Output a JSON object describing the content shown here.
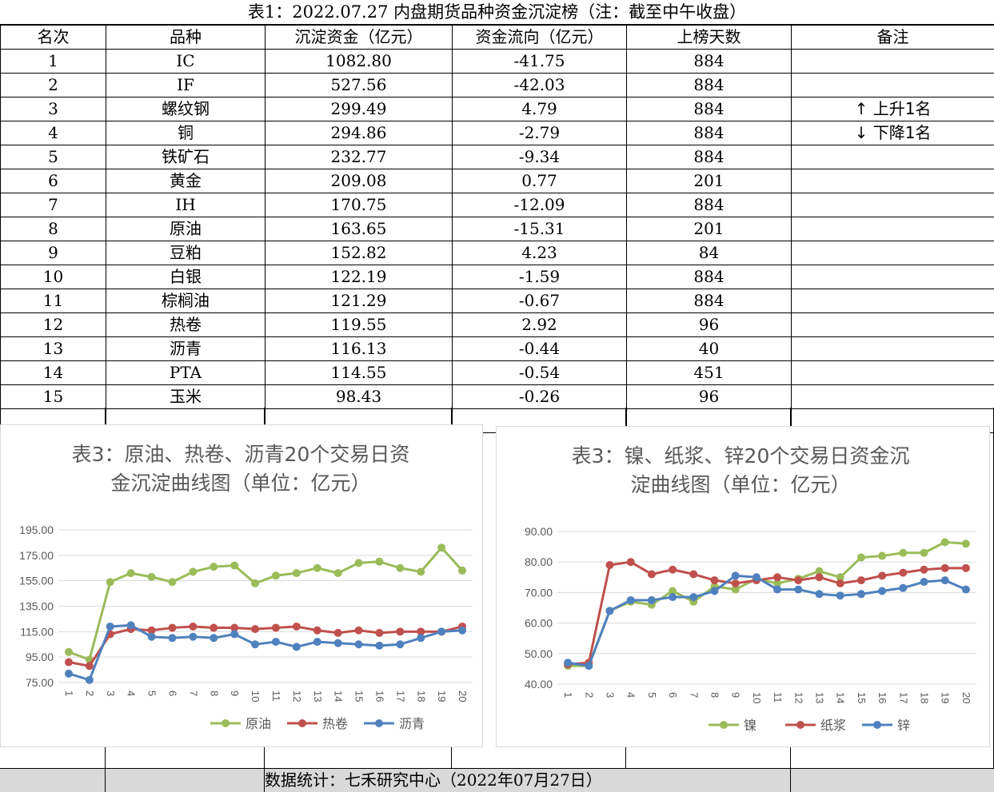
{
  "table": {
    "title": "表1：2022.07.27 内盘期货品种资金沉淀榜（注：截至中午收盘）",
    "headers": [
      "名次",
      "品种",
      "沉淀资金（亿元）",
      "资金流向（亿元）",
      "上榜天数",
      "备注"
    ],
    "rows": [
      {
        "rank": "1",
        "name": "IC",
        "amount": "1082.80",
        "flow": "-41.75",
        "days": "884",
        "note": ""
      },
      {
        "rank": "2",
        "name": "IF",
        "amount": "527.56",
        "flow": "-42.03",
        "days": "884",
        "note": ""
      },
      {
        "rank": "3",
        "name": "螺纹钢",
        "amount": "299.49",
        "flow": "4.79",
        "days": "884",
        "note": "↑ 上升1名"
      },
      {
        "rank": "4",
        "name": "铜",
        "amount": "294.86",
        "flow": "-2.79",
        "days": "884",
        "note": "↓ 下降1名"
      },
      {
        "rank": "5",
        "name": "铁矿石",
        "amount": "232.77",
        "flow": "-9.34",
        "days": "884",
        "note": ""
      },
      {
        "rank": "6",
        "name": "黄金",
        "amount": "209.08",
        "flow": "0.77",
        "days": "201",
        "note": ""
      },
      {
        "rank": "7",
        "name": "IH",
        "amount": "170.75",
        "flow": "-12.09",
        "days": "884",
        "note": ""
      },
      {
        "rank": "8",
        "name": "原油",
        "amount": "163.65",
        "flow": "-15.31",
        "days": "201",
        "note": ""
      },
      {
        "rank": "9",
        "name": "豆粕",
        "amount": "152.82",
        "flow": "4.23",
        "days": "84",
        "note": ""
      },
      {
        "rank": "10",
        "name": "白银",
        "amount": "122.19",
        "flow": "-1.59",
        "days": "884",
        "note": ""
      },
      {
        "rank": "11",
        "name": "棕榈油",
        "amount": "121.29",
        "flow": "-0.67",
        "days": "884",
        "note": ""
      },
      {
        "rank": "12",
        "name": "热卷",
        "amount": "119.55",
        "flow": "2.92",
        "days": "96",
        "note": ""
      },
      {
        "rank": "13",
        "name": "沥青",
        "amount": "116.13",
        "flow": "-0.44",
        "days": "40",
        "note": ""
      },
      {
        "rank": "14",
        "name": "PTA",
        "amount": "114.55",
        "flow": "-0.54",
        "days": "451",
        "note": ""
      },
      {
        "rank": "15",
        "name": "玉米",
        "amount": "98.43",
        "flow": "-0.26",
        "days": "96",
        "note": ""
      }
    ]
  },
  "footer": {
    "text": "数据统计：七禾研究中心（2022年07月27日）"
  },
  "chart_data": [
    {
      "type": "line",
      "title": "表3：原油、热卷、沥青20个交易日资金沉淀曲线图（单位：亿元）",
      "title_lines": [
        "表3：原油、热卷、沥青20个交易日资",
        "金沉淀曲线图（单位：亿元）"
      ],
      "x": [
        "1",
        "2",
        "3",
        "4",
        "5",
        "6",
        "7",
        "8",
        "9",
        "10",
        "11",
        "12",
        "13",
        "14",
        "15",
        "16",
        "17",
        "18",
        "19",
        "20"
      ],
      "ylim": [
        75,
        195
      ],
      "yticks": [
        "195.00",
        "175.00",
        "155.00",
        "135.00",
        "115.00",
        "95.00",
        "75.00"
      ],
      "grid": true,
      "legend_position": "bottom",
      "series": [
        {
          "name": "原油",
          "color": "#9bbb59",
          "values": [
            99,
            93,
            154,
            161,
            158,
            154,
            162,
            166,
            167,
            153,
            159,
            161,
            165,
            161,
            169,
            170,
            165,
            162,
            181,
            163
          ]
        },
        {
          "name": "热卷",
          "color": "#c0504d",
          "values": [
            91,
            88,
            113,
            117,
            116,
            118,
            119,
            118,
            118,
            117,
            118,
            119,
            116,
            114,
            116,
            114,
            115,
            115,
            115,
            119
          ]
        },
        {
          "name": "沥青",
          "color": "#4f81bd",
          "values": [
            82,
            77,
            119,
            120,
            111,
            110,
            111,
            110,
            113,
            105,
            107,
            103,
            107,
            106,
            105,
            104,
            105,
            110,
            115,
            116
          ]
        }
      ]
    },
    {
      "type": "line",
      "title": "表3：镍、纸浆、锌20个交易日资金沉淀曲线图（单位：亿元）",
      "title_lines": [
        "表3：镍、纸浆、锌20个交易日资金沉",
        "淀曲线图（单位：亿元）"
      ],
      "x": [
        "1",
        "2",
        "3",
        "4",
        "5",
        "6",
        "7",
        "8",
        "9",
        "10",
        "11",
        "12",
        "13",
        "14",
        "15",
        "16",
        "17",
        "18",
        "19",
        "20"
      ],
      "ylim": [
        40,
        90
      ],
      "yticks": [
        "90.00",
        "80.00",
        "70.00",
        "60.00",
        "50.00",
        "40.00"
      ],
      "grid": true,
      "legend_position": "bottom",
      "series": [
        {
          "name": "镍",
          "color": "#9bbb59",
          "values": [
            46,
            46,
            64,
            67,
            66,
            70.5,
            67,
            72,
            71,
            74.5,
            73,
            74.5,
            77,
            75,
            81.5,
            82,
            83,
            83,
            86.5,
            86
          ]
        },
        {
          "name": "纸浆",
          "color": "#c0504d",
          "values": [
            46.5,
            47,
            79,
            80,
            76,
            77.5,
            76,
            74,
            73,
            74,
            75,
            74,
            75,
            73,
            74,
            75.5,
            76.5,
            77.5,
            78,
            78
          ]
        },
        {
          "name": "锌",
          "color": "#4f81bd",
          "values": [
            47,
            46,
            64,
            67.5,
            67.5,
            68.5,
            68.5,
            70.5,
            75.5,
            75,
            71,
            71,
            69.5,
            69,
            69.5,
            70.5,
            71.5,
            73.5,
            74,
            71
          ]
        }
      ]
    }
  ]
}
